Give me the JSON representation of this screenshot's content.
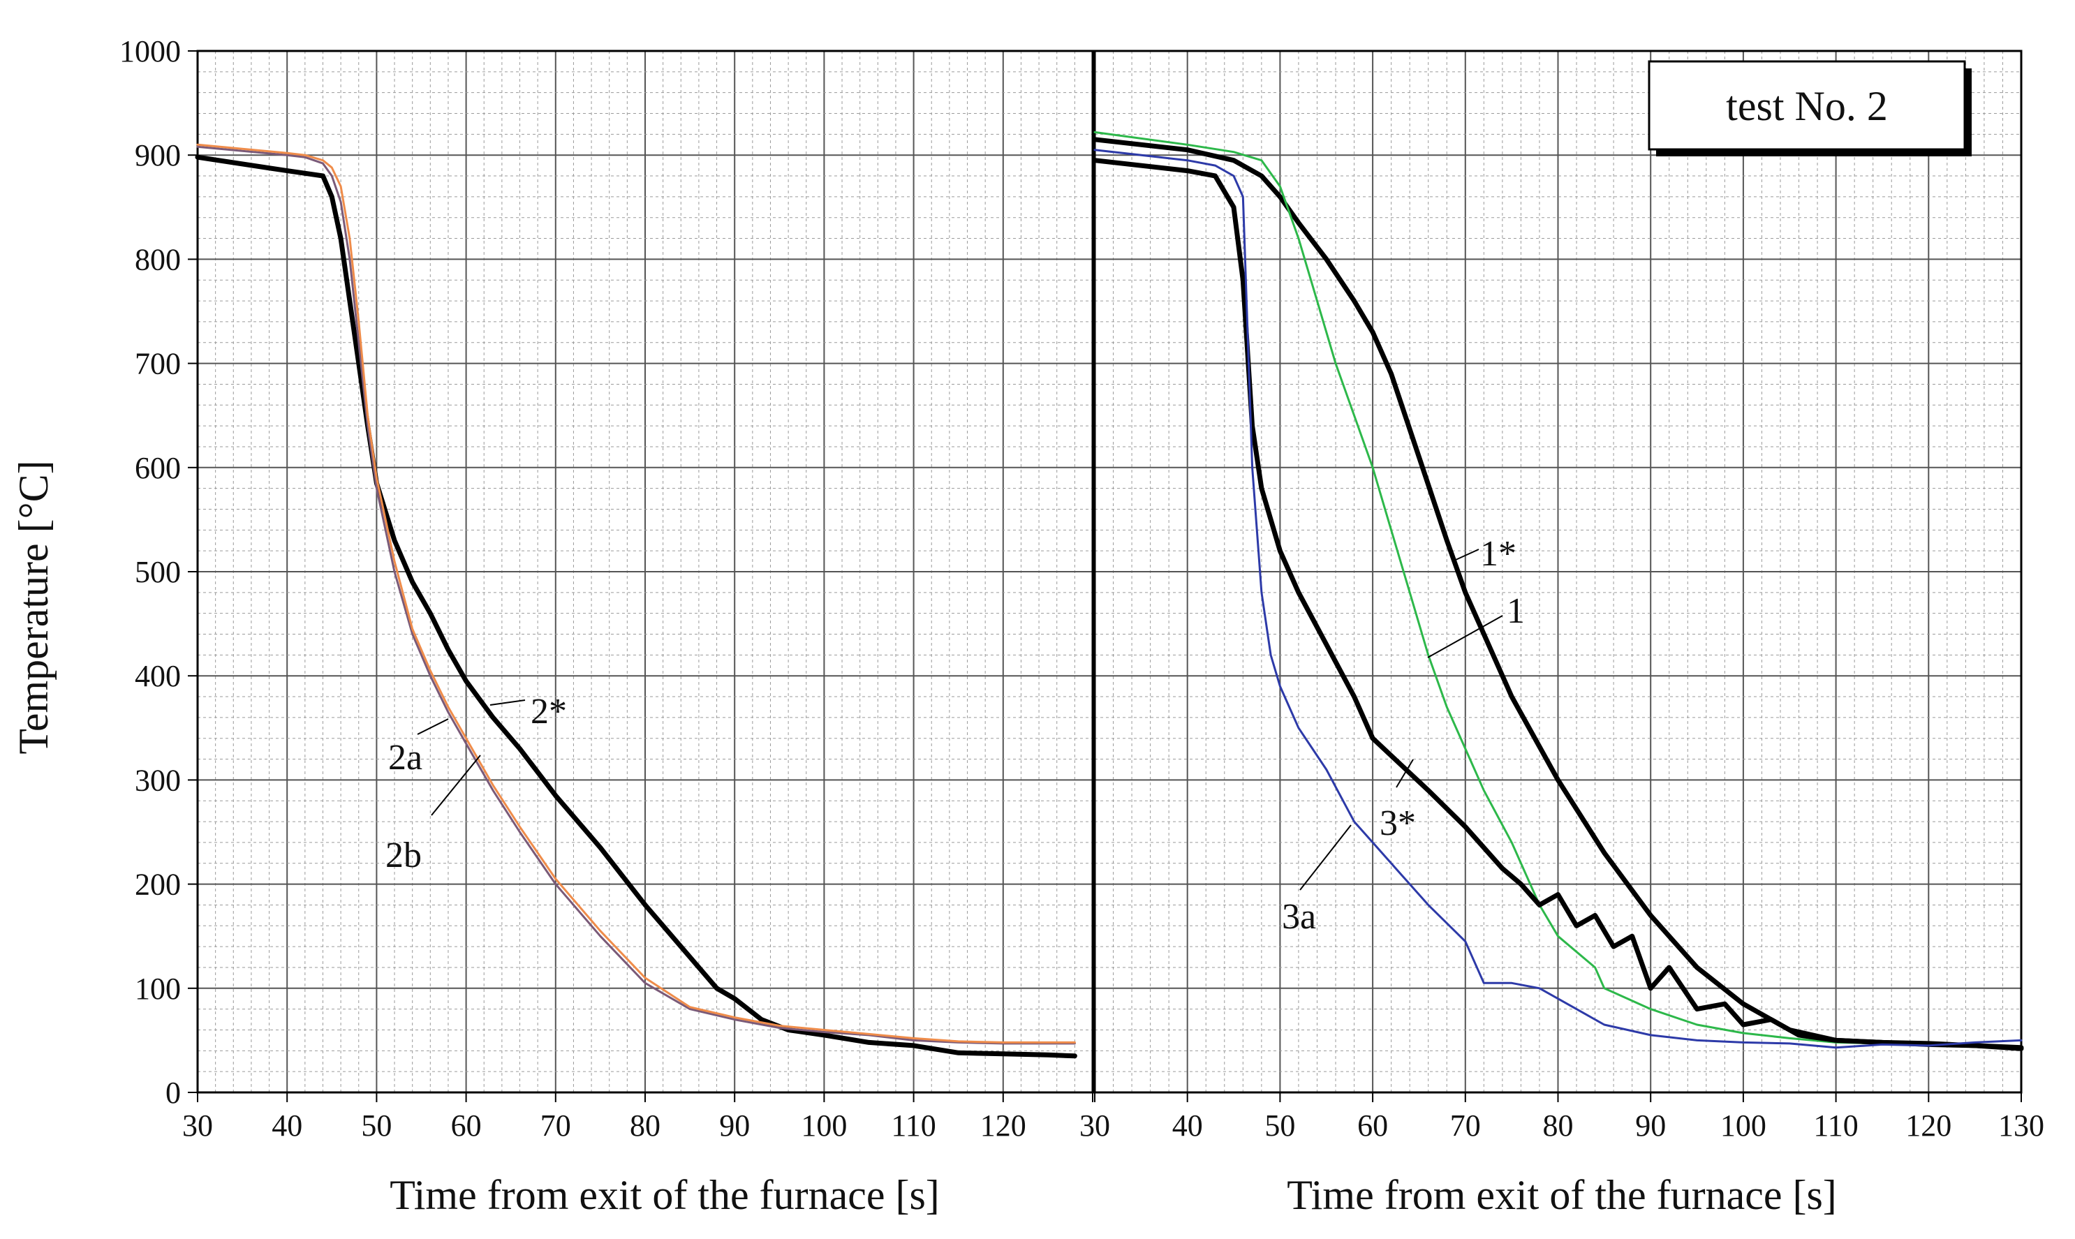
{
  "chart_data": [
    {
      "type": "line",
      "xlabel": "Time from exit of the furnace [s]",
      "ylabel": "Temperature [°C]",
      "xlim": [
        30,
        130
      ],
      "ylim": [
        0,
        1000
      ],
      "x_ticks": [
        "30",
        "40",
        "50",
        "60",
        "70",
        "80",
        "90",
        "100",
        "110",
        "120",
        "130"
      ],
      "y_ticks": [
        "0",
        "100",
        "200",
        "300",
        "400",
        "500",
        "600",
        "700",
        "800",
        "900",
        "1000"
      ],
      "grid": true,
      "series": [
        {
          "name": "2*",
          "color": "#000000",
          "x": [
            30,
            40,
            44,
            45,
            46,
            47,
            48,
            49,
            50,
            52,
            54,
            56,
            58,
            60,
            63,
            66,
            70,
            75,
            80,
            85,
            88,
            90,
            93,
            96,
            100,
            105,
            110,
            115,
            120,
            125,
            128
          ],
          "values": [
            898,
            885,
            880,
            860,
            820,
            760,
            700,
            640,
            585,
            530,
            490,
            460,
            425,
            395,
            360,
            330,
            285,
            235,
            180,
            130,
            100,
            90,
            70,
            60,
            55,
            48,
            45,
            38,
            37,
            36,
            35
          ]
        },
        {
          "name": "2a",
          "color": "#7a5a78",
          "x": [
            30,
            40,
            42,
            44,
            45,
            46,
            47,
            48,
            49,
            50,
            52,
            54,
            56,
            58,
            60,
            63,
            66,
            70,
            75,
            80,
            85,
            90,
            95,
            100,
            105,
            110,
            115,
            120,
            128
          ],
          "values": [
            908,
            900,
            898,
            892,
            880,
            855,
            800,
            720,
            640,
            580,
            500,
            440,
            400,
            365,
            335,
            290,
            250,
            200,
            150,
            105,
            80,
            70,
            62,
            58,
            55,
            50,
            48,
            47,
            47
          ]
        },
        {
          "name": "2b",
          "color": "#ef8c4a",
          "x": [
            30,
            40,
            42,
            44,
            45,
            46,
            47,
            48,
            49,
            50,
            52,
            54,
            56,
            58,
            60,
            63,
            66,
            70,
            75,
            80,
            85,
            90,
            95,
            100,
            105,
            110,
            115,
            120,
            128
          ],
          "values": [
            910,
            902,
            900,
            895,
            888,
            870,
            820,
            740,
            650,
            590,
            510,
            445,
            405,
            370,
            340,
            295,
            255,
            205,
            155,
            110,
            82,
            72,
            64,
            60,
            56,
            52,
            49,
            48,
            48
          ]
        }
      ],
      "annotations": [
        "2*",
        "2a",
        "2b"
      ]
    },
    {
      "type": "line",
      "title": "test No. 2",
      "xlabel": "Time from exit of the furnace [s]",
      "xlim": [
        30,
        130
      ],
      "ylim": [
        0,
        1000
      ],
      "x_ticks": [
        "30",
        "40",
        "50",
        "60",
        "70",
        "80",
        "90",
        "100",
        "110",
        "120",
        "130"
      ],
      "grid": true,
      "series": [
        {
          "name": "1*",
          "color": "#000000",
          "x": [
            30,
            40,
            45,
            48,
            50,
            52,
            55,
            58,
            60,
            62,
            65,
            68,
            70,
            75,
            80,
            85,
            90,
            95,
            100,
            105,
            110,
            115,
            120,
            125,
            130
          ],
          "values": [
            915,
            905,
            895,
            880,
            860,
            835,
            800,
            760,
            730,
            690,
            610,
            530,
            480,
            380,
            300,
            230,
            170,
            120,
            85,
            60,
            50,
            48,
            47,
            45,
            42
          ]
        },
        {
          "name": "1",
          "color": "#2db84a",
          "x": [
            30,
            40,
            45,
            48,
            50,
            52,
            54,
            56,
            58,
            60,
            62,
            64,
            66,
            68,
            70,
            72,
            75,
            78,
            80,
            84,
            85,
            90,
            95,
            100,
            105,
            110,
            115,
            120,
            125,
            130
          ],
          "values": [
            922,
            910,
            903,
            895,
            870,
            820,
            760,
            700,
            650,
            600,
            540,
            480,
            420,
            370,
            330,
            290,
            240,
            180,
            150,
            120,
            100,
            80,
            65,
            57,
            52,
            48,
            47,
            46,
            45,
            43
          ]
        },
        {
          "name": "3*",
          "color": "#000000",
          "x": [
            30,
            40,
            43,
            45,
            46,
            47,
            48,
            50,
            52,
            55,
            58,
            60,
            63,
            66,
            70,
            74,
            76,
            78,
            80,
            82,
            84,
            86,
            88,
            90,
            92,
            95,
            98,
            100,
            103,
            106,
            110,
            115,
            120,
            125,
            130
          ],
          "values": [
            895,
            885,
            880,
            850,
            780,
            640,
            580,
            520,
            480,
            430,
            380,
            340,
            315,
            290,
            255,
            215,
            200,
            180,
            190,
            160,
            170,
            140,
            150,
            100,
            120,
            80,
            85,
            65,
            70,
            55,
            50,
            48,
            46,
            45,
            43
          ]
        },
        {
          "name": "3a",
          "color": "#2d3aa8",
          "x": [
            30,
            40,
            43,
            45,
            46,
            47,
            48,
            49,
            50,
            52,
            55,
            58,
            60,
            63,
            66,
            70,
            72,
            75,
            78,
            80,
            83,
            85,
            90,
            95,
            100,
            105,
            110,
            115,
            120,
            125,
            130
          ],
          "values": [
            905,
            895,
            890,
            880,
            860,
            600,
            480,
            420,
            390,
            350,
            310,
            260,
            240,
            210,
            180,
            145,
            105,
            105,
            100,
            90,
            75,
            65,
            55,
            50,
            48,
            47,
            43,
            46,
            45,
            48,
            50
          ]
        }
      ],
      "annotations": [
        "1*",
        "1",
        "3*",
        "3a"
      ]
    }
  ]
}
